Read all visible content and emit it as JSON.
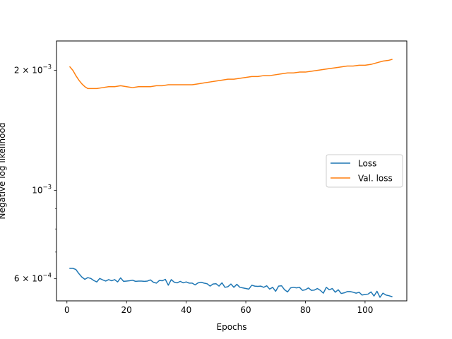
{
  "chart_data": {
    "type": "line",
    "title": "",
    "xlabel": "Epochs",
    "ylabel": "Negative log likelihood",
    "yscale": "log",
    "xlim": [
      -3.5,
      114
    ],
    "ylim": [
      0.000528,
      0.00237
    ],
    "xticks": [
      0,
      20,
      40,
      60,
      80,
      100
    ],
    "xtick_labels": [
      "0",
      "20",
      "40",
      "60",
      "80",
      "100"
    ],
    "yticks": [
      {
        "value": 0.0006,
        "base": "6",
        "op": " × ",
        "exp_base": "10",
        "exp": "−4"
      },
      {
        "value": 0.001,
        "base": "",
        "op": "",
        "exp_base": "10",
        "exp": "−3"
      },
      {
        "value": 0.002,
        "base": "2",
        "op": " × ",
        "exp_base": "10",
        "exp": "−3"
      }
    ],
    "legend": {
      "position": "center-right"
    },
    "grid": false,
    "series": [
      {
        "name": "Loss",
        "color": "#1f77b4",
        "x": [
          1,
          2,
          3,
          4,
          5,
          6,
          7,
          8,
          9,
          10,
          11,
          12,
          13,
          14,
          15,
          16,
          17,
          18,
          19,
          20,
          21,
          22,
          23,
          24,
          25,
          26,
          27,
          28,
          29,
          30,
          31,
          32,
          33,
          34,
          35,
          36,
          37,
          38,
          39,
          40,
          41,
          42,
          43,
          44,
          45,
          46,
          47,
          48,
          49,
          50,
          51,
          52,
          53,
          54,
          55,
          56,
          57,
          58,
          59,
          60,
          61,
          62,
          63,
          64,
          65,
          66,
          67,
          68,
          69,
          70,
          71,
          72,
          73,
          74,
          75,
          76,
          77,
          78,
          79,
          80,
          81,
          82,
          83,
          84,
          85,
          86,
          87,
          88,
          89,
          90,
          91,
          92,
          93,
          94,
          95,
          96,
          97,
          98,
          99,
          100,
          101,
          102,
          103,
          104,
          105,
          106,
          107,
          108,
          109
        ],
        "y": [
          0.000637,
          0.000637,
          0.000633,
          0.000618,
          0.000606,
          0.000598,
          0.000604,
          0.000601,
          0.000594,
          0.000589,
          0.000601,
          0.000596,
          0.000592,
          0.000597,
          0.000593,
          0.000597,
          0.000589,
          0.000603,
          0.000591,
          0.000592,
          0.000593,
          0.000595,
          0.000591,
          0.000592,
          0.000592,
          0.000591,
          0.000592,
          0.000596,
          0.000588,
          0.000585,
          0.000594,
          0.000593,
          0.000598,
          0.000578,
          0.000597,
          0.000588,
          0.000586,
          0.000591,
          0.000586,
          0.000589,
          0.000585,
          0.000585,
          0.000579,
          0.000586,
          0.000588,
          0.000585,
          0.000583,
          0.000575,
          0.000582,
          0.000583,
          0.000575,
          0.000586,
          0.000571,
          0.000573,
          0.000582,
          0.000571,
          0.000581,
          0.000571,
          0.000569,
          0.000567,
          0.000565,
          0.000578,
          0.000575,
          0.000574,
          0.000575,
          0.000571,
          0.000576,
          0.000565,
          0.000571,
          0.000558,
          0.000575,
          0.000576,
          0.000563,
          0.000556,
          0.000569,
          0.000571,
          0.000569,
          0.000571,
          0.000561,
          0.000563,
          0.000569,
          0.000561,
          0.000562,
          0.000567,
          0.000561,
          0.000552,
          0.000571,
          0.000563,
          0.000567,
          0.000555,
          0.000563,
          0.000551,
          0.000553,
          0.000557,
          0.000557,
          0.000555,
          0.000552,
          0.000555,
          0.000546,
          0.000548,
          0.000549,
          0.000556,
          0.000543,
          0.000558,
          0.000539,
          0.000552,
          0.000546,
          0.000544,
          0.000541
        ]
      },
      {
        "name": "Val. loss",
        "color": "#ff7f0e",
        "x": [
          1,
          2,
          3,
          4,
          5,
          6,
          7,
          8,
          9,
          10,
          12,
          14,
          16,
          18,
          20,
          22,
          24,
          26,
          28,
          30,
          32,
          34,
          36,
          38,
          40,
          42,
          44,
          46,
          48,
          50,
          52,
          54,
          56,
          58,
          60,
          62,
          64,
          66,
          68,
          70,
          72,
          74,
          76,
          78,
          80,
          82,
          84,
          86,
          88,
          90,
          92,
          94,
          96,
          98,
          100,
          102,
          104,
          106,
          108,
          109
        ],
        "y": [
          0.00204,
          0.002,
          0.00194,
          0.00189,
          0.00185,
          0.00182,
          0.0018,
          0.0018,
          0.0018,
          0.0018,
          0.00181,
          0.00182,
          0.00182,
          0.00183,
          0.00182,
          0.00181,
          0.00182,
          0.00182,
          0.00182,
          0.00183,
          0.00183,
          0.00184,
          0.00184,
          0.00184,
          0.00184,
          0.00184,
          0.00185,
          0.00186,
          0.00187,
          0.00188,
          0.00189,
          0.0019,
          0.0019,
          0.00191,
          0.00192,
          0.00193,
          0.00193,
          0.00194,
          0.00194,
          0.00195,
          0.00196,
          0.00197,
          0.00197,
          0.00198,
          0.00198,
          0.00199,
          0.002,
          0.00201,
          0.00202,
          0.00203,
          0.00204,
          0.00205,
          0.00205,
          0.00206,
          0.00206,
          0.00207,
          0.00209,
          0.00211,
          0.00212,
          0.00213
        ]
      }
    ]
  }
}
